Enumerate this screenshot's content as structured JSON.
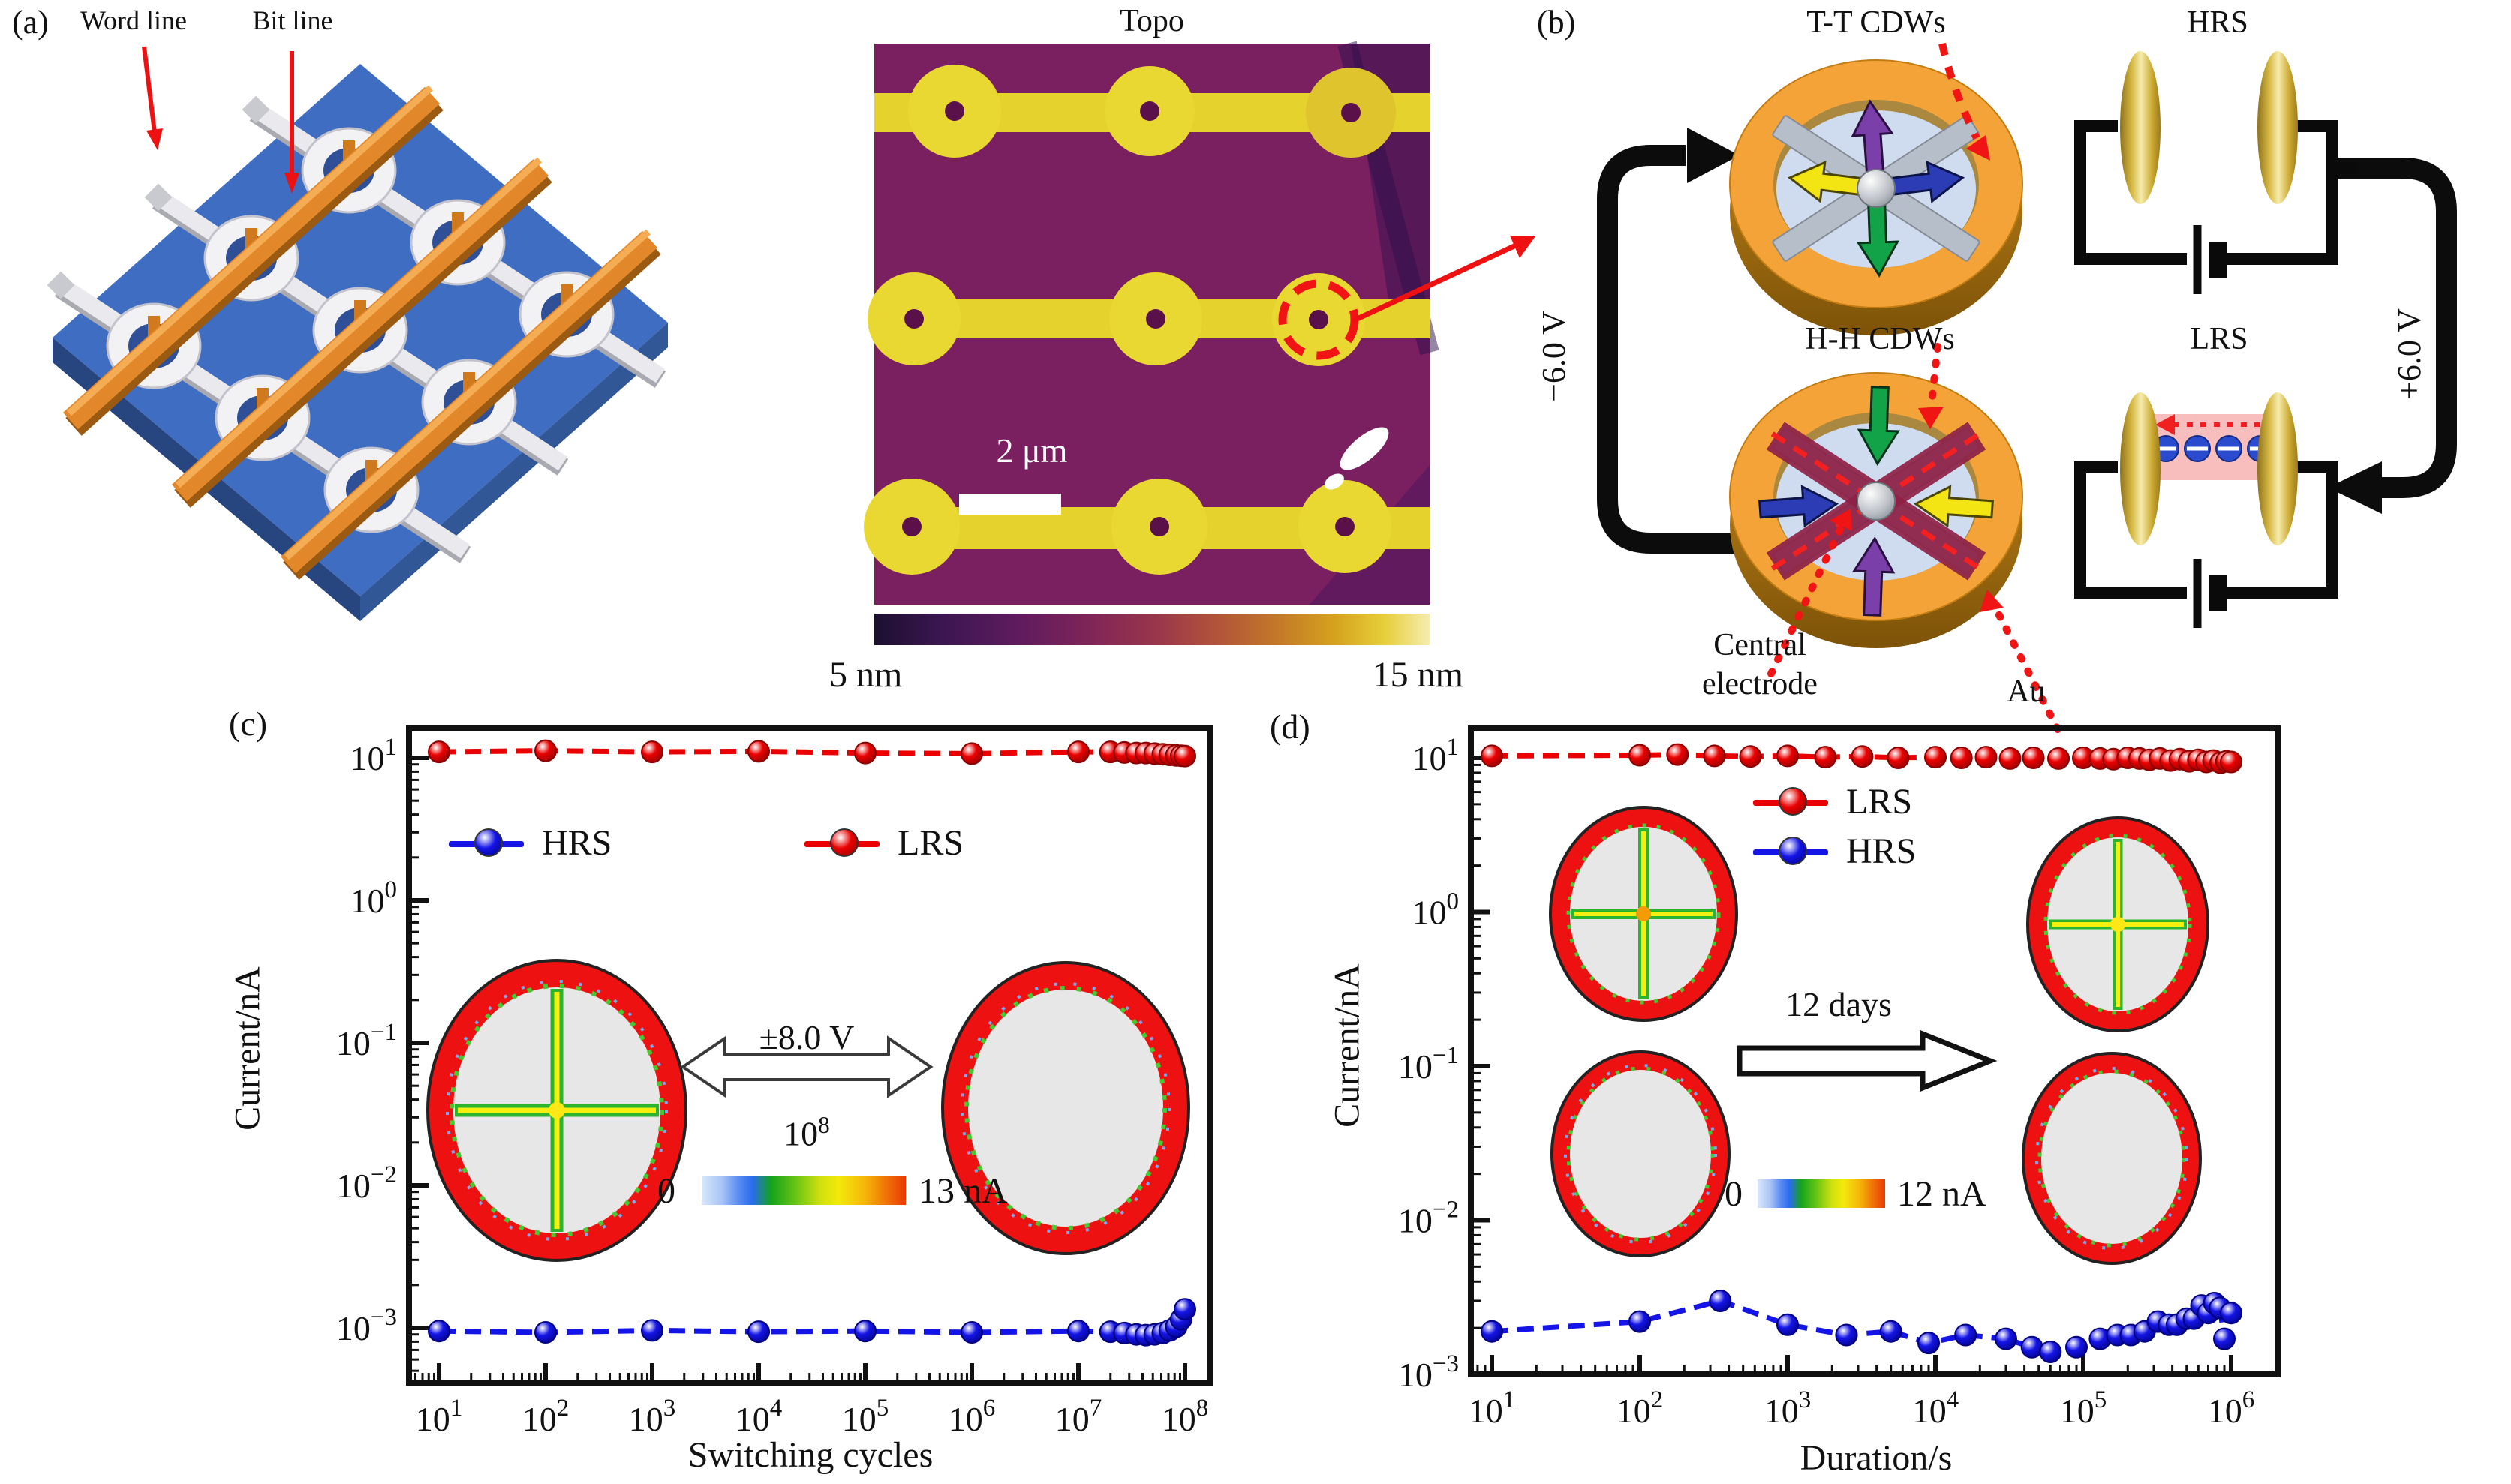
{
  "figure": {
    "panel_a": {
      "label": "(a)",
      "word_line": "Word line",
      "bit_line": "Bit line"
    },
    "topo": {
      "title": "Topo",
      "scale_bar": "2 μm",
      "colorbar_min": "5 nm",
      "colorbar_max": "15 nm"
    },
    "panel_b": {
      "label": "(b)",
      "tt_cdws": "T-T CDWs",
      "hh_cdws": "H-H CDWs",
      "hrs": "HRS",
      "lrs": "LRS",
      "set_voltage": "−6.0 V",
      "reset_voltage": "+6.0 V",
      "central_electrode_line1": "Central",
      "central_electrode_line2": "electrode",
      "au": "Au"
    }
  },
  "colors": {
    "lrs_red": "#ea0000",
    "hrs_blue": "#1414e6",
    "topo_background": "#7a2060",
    "topo_line_yellow": "#e6d22c",
    "platform_blue": "#3e6dc2",
    "bar_orange": "#e2882a",
    "ring_gold": "#f3a338",
    "marker_red_dark": "#8a0000",
    "marker_blue_dark": "#000080"
  },
  "chart_data": [
    {
      "id": "c",
      "panel_label": "(c)",
      "type": "line",
      "x_scale": "log",
      "y_scale": "log",
      "xlabel": "Switching cycles",
      "ylabel": "Current/nA",
      "x_range": [
        10,
        100000000
      ],
      "y_range": [
        0.00042,
        16
      ],
      "x_tick_exponents": [
        1,
        2,
        3,
        4,
        5,
        6,
        7,
        8
      ],
      "y_tick_exponents": [
        1,
        0,
        -1,
        -2,
        -3
      ],
      "grid": false,
      "legend_position": "inside top, HRS left / LRS right",
      "series": [
        {
          "name": "HRS",
          "color": "#1414e6",
          "color_dark": "#000080",
          "x": [
            10,
            100,
            1000,
            10000,
            100000,
            1000000,
            10000000,
            20000000,
            27000000,
            35000000,
            43000000,
            52000000,
            62000000,
            72000000,
            83000000,
            92000000,
            100000000
          ],
          "y": [
            0.00095,
            0.00093,
            0.00096,
            0.00094,
            0.00095,
            0.00093,
            0.00095,
            0.00094,
            0.00092,
            0.0009,
            0.00089,
            0.0009,
            0.00092,
            0.00096,
            0.00102,
            0.00115,
            0.00135
          ]
        },
        {
          "name": "LRS",
          "color": "#ea0000",
          "color_dark": "#8a0000",
          "x": [
            10,
            100,
            1000,
            10000,
            100000,
            1000000,
            10000000,
            20000000,
            27000000,
            35000000,
            43000000,
            52000000,
            62000000,
            72000000,
            83000000,
            92000000,
            100000000
          ],
          "y": [
            11,
            11.2,
            11,
            11.1,
            10.8,
            10.7,
            11,
            11,
            10.9,
            10.8,
            10.8,
            10.7,
            10.6,
            10.5,
            10.4,
            10.35,
            10.3
          ]
        }
      ],
      "annotations": {
        "voltage": "±8.0 V",
        "cycles_base": "10",
        "cycles_exponent": "8",
        "colorbar_min": "0",
        "colorbar_max": "13 nA"
      }
    },
    {
      "id": "d",
      "panel_label": "(d)",
      "type": "line",
      "x_scale": "log",
      "y_scale": "log",
      "xlabel": "Duration/s",
      "ylabel": "Current/nA",
      "x_range": [
        10,
        1000000
      ],
      "y_range": [
        0.001,
        16
      ],
      "x_tick_exponents": [
        1,
        2,
        3,
        4,
        5,
        6
      ],
      "y_tick_exponents": [
        1,
        0,
        -1,
        -2,
        -3
      ],
      "grid": false,
      "legend_position": "inside top center, LRS above HRS",
      "series": [
        {
          "name": "LRS",
          "color": "#ea0000",
          "color_dark": "#8a0000",
          "x": [
            10,
            100,
            180,
            320,
            560,
            1000,
            1800,
            3200,
            5600,
            10000,
            15000,
            22000,
            32000,
            46000,
            68000,
            100000,
            130000,
            160000,
            200000,
            240000,
            280000,
            330000,
            390000,
            450000,
            520000,
            600000,
            680000,
            760000,
            850000,
            930000,
            1000000
          ],
          "y": [
            10.3,
            10.4,
            10.5,
            10.3,
            10.2,
            10.3,
            10.1,
            10.2,
            10.0,
            10.1,
            10.0,
            10.1,
            9.9,
            10.0,
            9.9,
            10.0,
            9.9,
            9.8,
            10.0,
            9.9,
            9.7,
            9.9,
            9.6,
            9.8,
            9.5,
            9.7,
            9.4,
            9.6,
            9.3,
            9.5,
            9.4
          ]
        },
        {
          "name": "HRS",
          "color": "#1414e6",
          "color_dark": "#000080",
          "x": [
            10,
            100,
            350,
            1000,
            2500,
            5000,
            9000,
            16000,
            30000,
            45000,
            60000,
            90000,
            130000,
            170000,
            210000,
            260000,
            320000,
            380000,
            430000,
            500000,
            560000,
            630000,
            700000,
            770000,
            840000,
            900000,
            1000000
          ],
          "y": [
            0.0019,
            0.0022,
            0.003,
            0.0021,
            0.0018,
            0.0019,
            0.0016,
            0.0018,
            0.0017,
            0.0015,
            0.0014,
            0.0015,
            0.0017,
            0.0018,
            0.0018,
            0.0019,
            0.0022,
            0.0021,
            0.0021,
            0.0023,
            0.0023,
            0.0028,
            0.0025,
            0.0029,
            0.0027,
            0.0017,
            0.0025
          ]
        }
      ],
      "annotations": {
        "arrow_label": "12 days",
        "colorbar_min": "0",
        "colorbar_max": "12 nA"
      }
    }
  ]
}
